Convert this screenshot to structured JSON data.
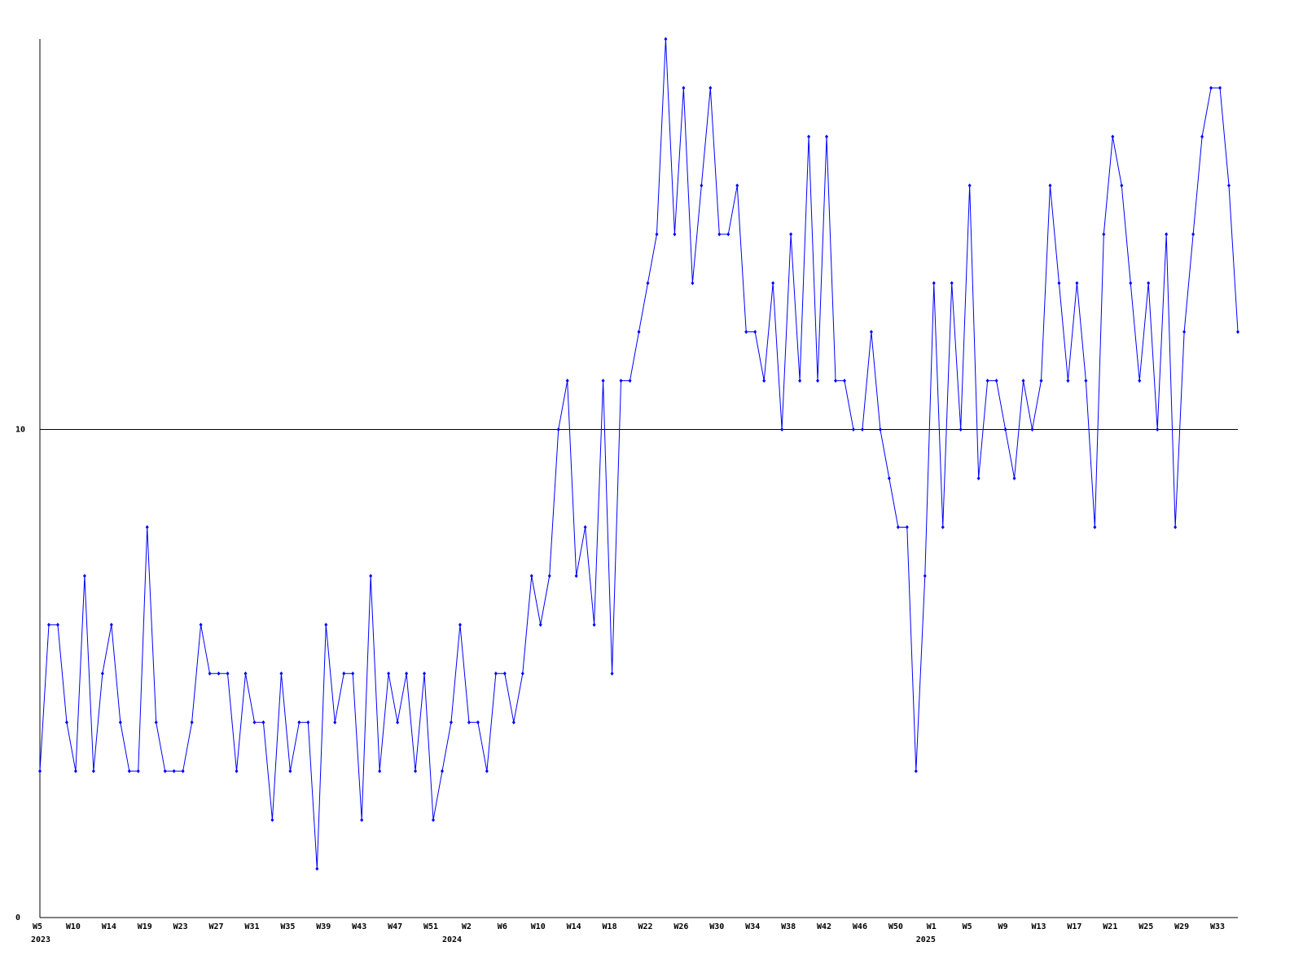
{
  "chart_data": {
    "type": "line",
    "categories": [
      "W5",
      null,
      null,
      null,
      "W10",
      null,
      null,
      null,
      "W14",
      null,
      null,
      null,
      "W19",
      null,
      null,
      null,
      "W23",
      null,
      null,
      null,
      "W27",
      null,
      null,
      null,
      "W31",
      null,
      null,
      null,
      "W35",
      null,
      null,
      null,
      "W39",
      null,
      null,
      null,
      "W43",
      null,
      null,
      null,
      "W47",
      null,
      null,
      null,
      "W51",
      null,
      null,
      null,
      "W2",
      null,
      null,
      null,
      "W6",
      null,
      null,
      null,
      "W10",
      null,
      null,
      null,
      "W14",
      null,
      null,
      null,
      "W18",
      null,
      null,
      null,
      "W22",
      null,
      null,
      null,
      "W26",
      null,
      null,
      null,
      "W30",
      null,
      null,
      null,
      "W34",
      null,
      null,
      null,
      "W38",
      null,
      null,
      null,
      "W42",
      null,
      null,
      null,
      "W46",
      null,
      null,
      null,
      "W50",
      null,
      null,
      null,
      "W1",
      null,
      null,
      null,
      "W5",
      null,
      null,
      null,
      "W9",
      null,
      null,
      null,
      "W13",
      null,
      null,
      null,
      "W17",
      null,
      null,
      null,
      "W21",
      null,
      null,
      null,
      "W25",
      null,
      null,
      null,
      "W29",
      null,
      null,
      null,
      "W33",
      null,
      null
    ],
    "year_labels": [
      {
        "index": 0,
        "label": "2023"
      },
      {
        "index": 46,
        "label": "2024"
      },
      {
        "index": 99,
        "label": "2025"
      }
    ],
    "series": [
      {
        "color": "#0000ff",
        "values": [
          3,
          6,
          6,
          4,
          3,
          7,
          3,
          5,
          6,
          4,
          3,
          3,
          8,
          4,
          3,
          3,
          3,
          4,
          6,
          5,
          5,
          5,
          3,
          5,
          4,
          4,
          2,
          5,
          3,
          4,
          4,
          1,
          6,
          4,
          5,
          5,
          2,
          7,
          3,
          5,
          4,
          5,
          3,
          5,
          2,
          3,
          4,
          6,
          4,
          4,
          3,
          5,
          5,
          4,
          5,
          7,
          6,
          7,
          10,
          11,
          7,
          8,
          6,
          11,
          5,
          11,
          11,
          12,
          13,
          14,
          18,
          14,
          17,
          13,
          15,
          17,
          14,
          14,
          15,
          12,
          12,
          11,
          13,
          10,
          14,
          11,
          16,
          11,
          16,
          11,
          11,
          10,
          10,
          12,
          10,
          9,
          8,
          8,
          3,
          7,
          13,
          8,
          13,
          10,
          15,
          9,
          11,
          11,
          10,
          9,
          11,
          10,
          11,
          15,
          13,
          11,
          13,
          11,
          8,
          14,
          16,
          15,
          13,
          11,
          13,
          10,
          14,
          8,
          12,
          14,
          16,
          17,
          17,
          15,
          12
        ]
      }
    ],
    "ylim": [
      0,
      18
    ],
    "yticks": [
      0,
      10
    ],
    "grid_lines": [
      10
    ]
  }
}
